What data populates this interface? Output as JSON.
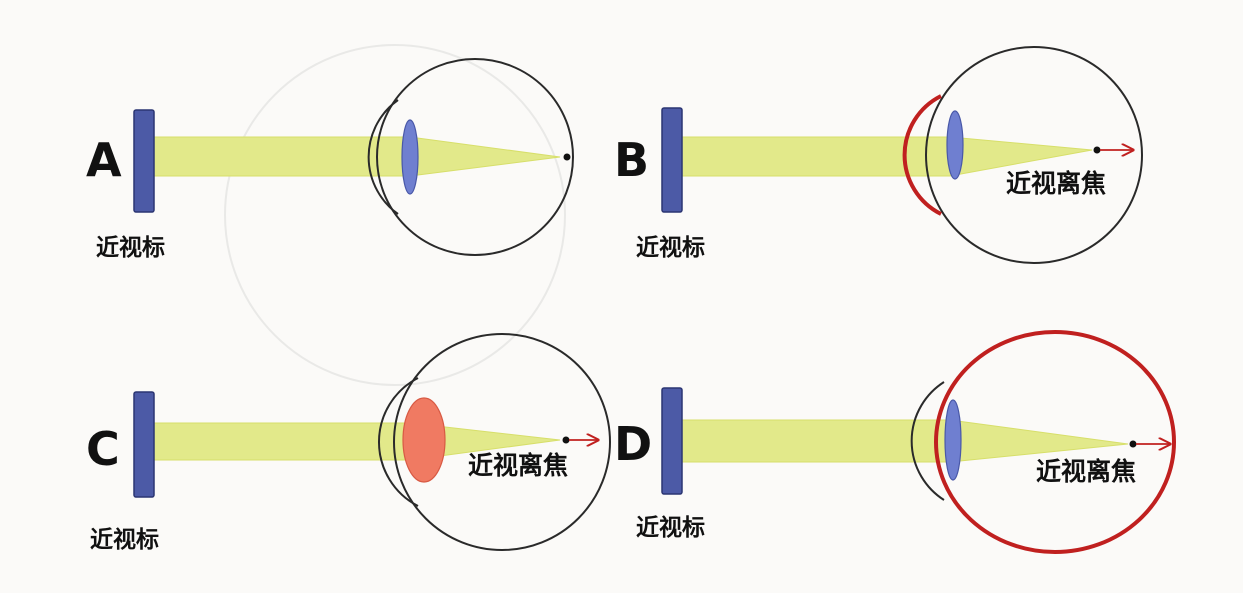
{
  "colors": {
    "beam": "#e2e98a",
    "beam_edge": "#d7df6a",
    "target_bar": "#4c5aa6",
    "lens": "#6f7fd0",
    "lens_thick": "#f07a62",
    "highlight": "#c0201f",
    "outline": "#2a2a2a"
  },
  "panels": [
    {
      "letter": "A",
      "target_label": "近视标",
      "focus_label": ""
    },
    {
      "letter": "B",
      "target_label": "近视标",
      "focus_label": "近视离焦"
    },
    {
      "letter": "C",
      "target_label": "近视标",
      "focus_label": "近视离焦"
    },
    {
      "letter": "D",
      "target_label": "近视标",
      "focus_label": "近视离焦"
    }
  ]
}
